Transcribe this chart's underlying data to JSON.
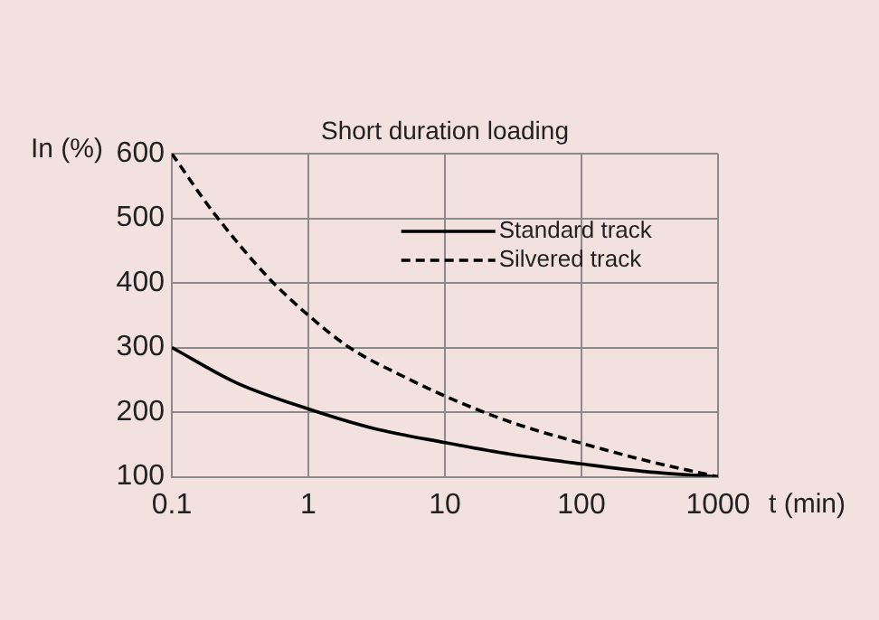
{
  "chart_data": {
    "type": "line",
    "title": "Short duration loading",
    "xlabel": "t (min)",
    "ylabel": "In (%)",
    "log": "x",
    "xlim": [
      0.1,
      1000
    ],
    "xticks": [
      0.1,
      1,
      10,
      100,
      1000
    ],
    "ylim": [
      100,
      600
    ],
    "yticks": [
      100,
      200,
      300,
      400,
      500,
      600
    ],
    "grid": true,
    "legend": "top right",
    "marker": "none",
    "series": [
      {
        "name": "Standard track",
        "color": "#000000",
        "line_style": "solid",
        "x": [
          0.1,
          0.3,
          1,
          3,
          10,
          30,
          100,
          300,
          1000
        ],
        "values": [
          300,
          245,
          205,
          175,
          153,
          135,
          120,
          108,
          100
        ]
      },
      {
        "name": "Silvered track",
        "color": "#000000",
        "line_style": "dashed",
        "x": [
          0.1,
          0.2,
          0.5,
          1,
          2,
          5,
          10,
          30,
          100,
          300,
          1000
        ],
        "values": [
          600,
          510,
          410,
          350,
          300,
          255,
          225,
          185,
          152,
          125,
          100
        ]
      }
    ]
  }
}
